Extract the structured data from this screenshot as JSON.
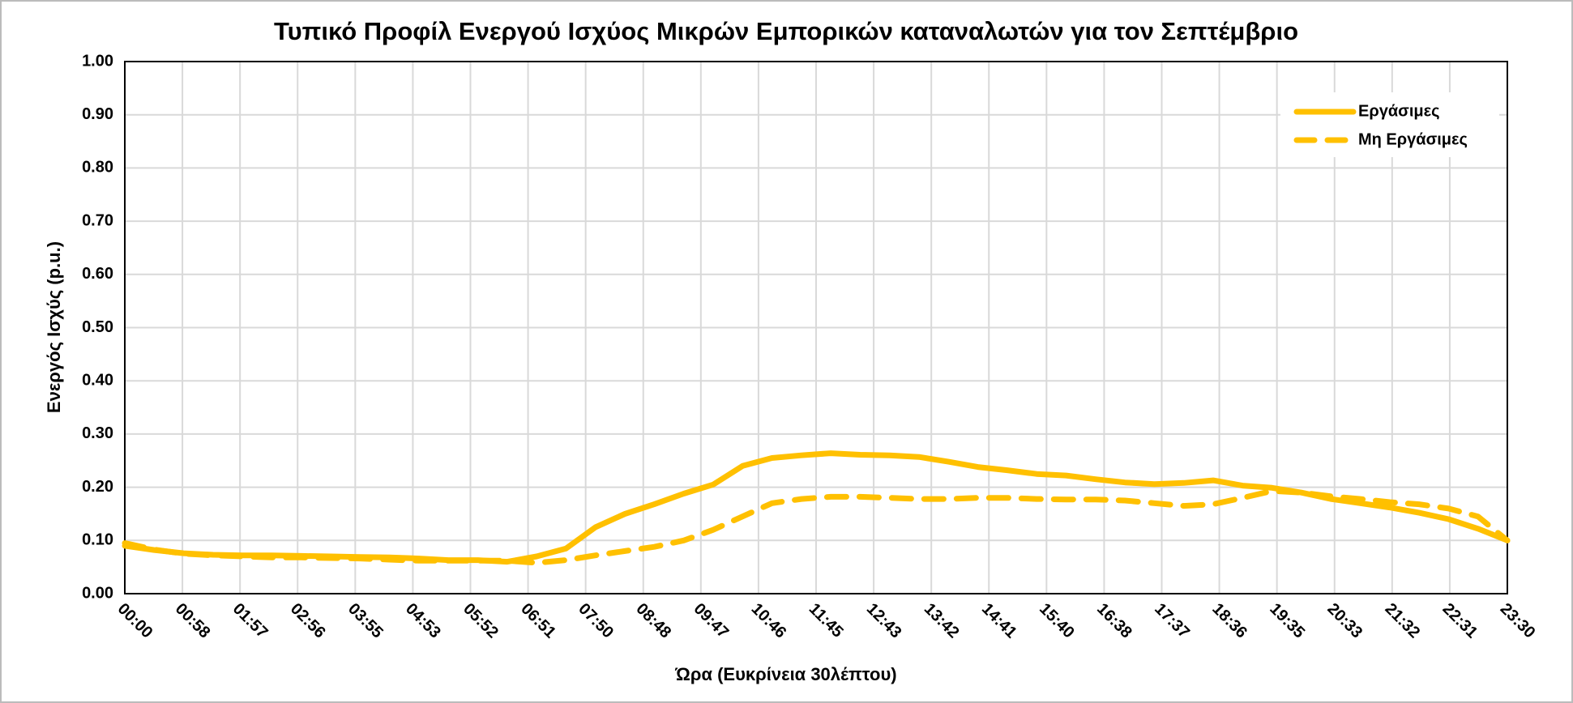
{
  "chart_data": {
    "type": "line",
    "title": "Τυπικό Προφίλ Ενεργού Ισχύος Μικρών Εμπορικών καταναλωτών για τον Σεπτέμβριο",
    "x_label": "Ώρα (Ευκρίνεια 30λέπτου)",
    "y_label": "Ενεργός Ισχύς (p.u.)",
    "x": [
      0,
      30,
      60,
      90,
      120,
      150,
      180,
      210,
      240,
      270,
      300,
      330,
      360,
      390,
      420,
      450,
      480,
      510,
      540,
      570,
      600,
      630,
      660,
      690,
      720,
      750,
      780,
      810,
      840,
      870,
      900,
      930,
      960,
      990,
      1020,
      1050,
      1080,
      1110,
      1140,
      1170,
      1200,
      1230,
      1260,
      1290,
      1320,
      1350,
      1380,
      1410
    ],
    "series": [
      {
        "name": "Εργάσιμες",
        "color": "#FFC000",
        "dash": false,
        "values": [
          0.09,
          0.082,
          0.076,
          0.073,
          0.072,
          0.072,
          0.071,
          0.07,
          0.069,
          0.068,
          0.066,
          0.063,
          0.063,
          0.06,
          0.07,
          0.085,
          0.125,
          0.15,
          0.168,
          0.188,
          0.205,
          0.24,
          0.255,
          0.26,
          0.264,
          0.261,
          0.26,
          0.257,
          0.248,
          0.238,
          0.232,
          0.225,
          0.222,
          0.215,
          0.209,
          0.206,
          0.208,
          0.213,
          0.203,
          0.199,
          0.19,
          0.178,
          0.17,
          0.162,
          0.152,
          0.14,
          0.122,
          0.1
        ]
      },
      {
        "name": "Μη Εργάσιμες",
        "color": "#FFC000",
        "dash": true,
        "values": [
          0.095,
          0.083,
          0.075,
          0.072,
          0.07,
          0.068,
          0.068,
          0.067,
          0.066,
          0.064,
          0.062,
          0.062,
          0.062,
          0.062,
          0.058,
          0.063,
          0.072,
          0.08,
          0.088,
          0.1,
          0.12,
          0.145,
          0.17,
          0.178,
          0.182,
          0.182,
          0.18,
          0.178,
          0.178,
          0.18,
          0.18,
          0.178,
          0.177,
          0.177,
          0.175,
          0.17,
          0.165,
          0.168,
          0.18,
          0.193,
          0.19,
          0.183,
          0.178,
          0.172,
          0.168,
          0.16,
          0.145,
          0.1
        ]
      }
    ],
    "xlim": [
      0,
      1410
    ],
    "xticks": [
      {
        "value": 0,
        "label": "00:00"
      },
      {
        "value": 58.75,
        "label": "00:58"
      },
      {
        "value": 117.5,
        "label": "01:57"
      },
      {
        "value": 176.25,
        "label": "02:56"
      },
      {
        "value": 235,
        "label": "03:55"
      },
      {
        "value": 293.75,
        "label": "04:53"
      },
      {
        "value": 352.5,
        "label": "05:52"
      },
      {
        "value": 411.25,
        "label": "06:51"
      },
      {
        "value": 470,
        "label": "07:50"
      },
      {
        "value": 528.75,
        "label": "08:48"
      },
      {
        "value": 587.5,
        "label": "09:47"
      },
      {
        "value": 646.25,
        "label": "10:46"
      },
      {
        "value": 705,
        "label": "11:45"
      },
      {
        "value": 763.75,
        "label": "12:43"
      },
      {
        "value": 822.5,
        "label": "13:42"
      },
      {
        "value": 881.25,
        "label": "14:41"
      },
      {
        "value": 940,
        "label": "15:40"
      },
      {
        "value": 998.75,
        "label": "16:38"
      },
      {
        "value": 1057.5,
        "label": "17:37"
      },
      {
        "value": 1116.25,
        "label": "18:36"
      },
      {
        "value": 1175,
        "label": "19:35"
      },
      {
        "value": 1233.75,
        "label": "20:33"
      },
      {
        "value": 1292.5,
        "label": "21:32"
      },
      {
        "value": 1351.25,
        "label": "22:31"
      },
      {
        "value": 1410,
        "label": "23:30"
      }
    ],
    "ylim": [
      0,
      1
    ],
    "yticks": [
      {
        "value": 0,
        "label": "0.00"
      },
      {
        "value": 0.1,
        "label": "0.10"
      },
      {
        "value": 0.2,
        "label": "0.20"
      },
      {
        "value": 0.3,
        "label": "0.30"
      },
      {
        "value": 0.4,
        "label": "0.40"
      },
      {
        "value": 0.5,
        "label": "0.50"
      },
      {
        "value": 0.6,
        "label": "0.60"
      },
      {
        "value": 0.7,
        "label": "0.70"
      },
      {
        "value": 0.8,
        "label": "0.80"
      },
      {
        "value": 0.9,
        "label": "0.90"
      },
      {
        "value": 1,
        "label": "1.00"
      }
    ],
    "grid": true,
    "legend": "upper right"
  }
}
